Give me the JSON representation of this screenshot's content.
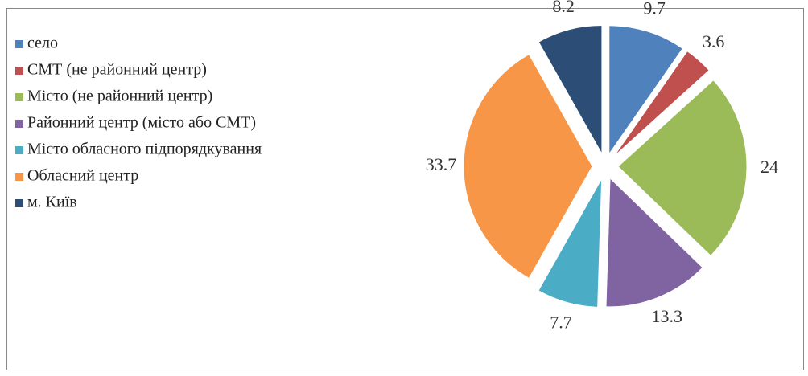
{
  "chart_data": {
    "type": "pie",
    "categories": [
      "село",
      "СМТ (не районний центр)",
      "Місто (не районний центр)",
      "Районний центр (місто або СМТ)",
      "Місто обласного підпорядкування",
      "Обласний центр",
      "м. Київ"
    ],
    "values": [
      9.7,
      3.6,
      24,
      13.3,
      7.7,
      33.7,
      8.2
    ],
    "colors": [
      "#4f81bd",
      "#c0504d",
      "#9bbb59",
      "#8064a2",
      "#4bacc6",
      "#f79646",
      "#2c4d75"
    ],
    "legend": "left"
  }
}
